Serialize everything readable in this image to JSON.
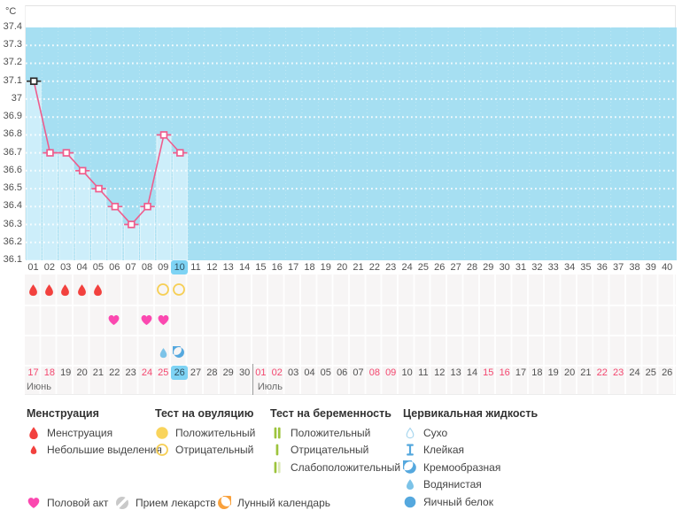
{
  "unit": "°C",
  "colors": {
    "chart_bg": "#a6dff2",
    "bar": "#cdeefa",
    "line": "#ef5d8d",
    "marker_first": "#2a2a2a",
    "highlight": "#7ed3f4",
    "menses_red": "#f2413e",
    "ovulation_yellow": "#f6cf55",
    "ovulation_fill": "#f9d45c",
    "heart_pink": "#fb48b0",
    "preg_green": "#9dc43d",
    "preg_green_pale": "#dce8b8",
    "cervical_blue": "#55a8de",
    "cervical_light": "#a9d7ef",
    "watery_blue": "#7cc3e8",
    "weekend_red": "#f4476f",
    "moon_orange": "#f9a13c",
    "pill_gray": "#c9c9c9"
  },
  "chart_data": {
    "type": "line",
    "ylabel": "°C",
    "ylim": [
      36.1,
      37.4
    ],
    "y_ticks": [
      "37.4",
      "37.3",
      "37.2",
      "37.1",
      "37",
      "36.9",
      "36.8",
      "36.7",
      "36.6",
      "36.5",
      "36.4",
      "36.3",
      "36.2",
      "36.1"
    ],
    "x_days": [
      "01",
      "02",
      "03",
      "04",
      "05",
      "06",
      "07",
      "08",
      "09",
      "10",
      "11",
      "12",
      "13",
      "14",
      "15",
      "16",
      "17",
      "18",
      "19",
      "20",
      "21",
      "22",
      "23",
      "24",
      "25",
      "26",
      "27",
      "28",
      "29",
      "30",
      "31",
      "32",
      "33",
      "34",
      "35",
      "36",
      "37",
      "38",
      "39",
      "40"
    ],
    "selected_day": 10,
    "grid": "dotted-white-horizontal",
    "series": [
      {
        "name": "temperature",
        "points": [
          {
            "day": 1,
            "value": 37.1
          },
          {
            "day": 2,
            "value": 36.7
          },
          {
            "day": 3,
            "value": 36.7
          },
          {
            "day": 4,
            "value": 36.6
          },
          {
            "day": 5,
            "value": 36.5
          },
          {
            "day": 6,
            "value": 36.4
          },
          {
            "day": 7,
            "value": 36.3
          },
          {
            "day": 8,
            "value": 36.4
          },
          {
            "day": 9,
            "value": 36.8
          },
          {
            "day": 10,
            "value": 36.7
          }
        ]
      }
    ]
  },
  "event_rows": [
    {
      "name": "menstruation-and-ovulation-test",
      "items": [
        {
          "day": 1,
          "icon": "menses-drop"
        },
        {
          "day": 2,
          "icon": "menses-drop"
        },
        {
          "day": 3,
          "icon": "menses-drop"
        },
        {
          "day": 4,
          "icon": "menses-drop"
        },
        {
          "day": 5,
          "icon": "menses-drop"
        },
        {
          "day": 9,
          "icon": "ovulation-negative"
        },
        {
          "day": 10,
          "icon": "ovulation-negative"
        }
      ]
    },
    {
      "name": "intercourse",
      "items": [
        {
          "day": 6,
          "icon": "heart"
        },
        {
          "day": 8,
          "icon": "heart"
        },
        {
          "day": 9,
          "icon": "heart"
        }
      ]
    },
    {
      "name": "cervical-fluid",
      "items": [
        {
          "day": 9,
          "icon": "cervical-watery"
        },
        {
          "day": 10,
          "icon": "cervical-creamy"
        }
      ]
    }
  ],
  "calendar": {
    "months": [
      {
        "name": "Июнь",
        "days": [
          "17",
          "18",
          "19",
          "20",
          "21",
          "22",
          "23",
          "24",
          "25",
          "26",
          "27",
          "28",
          "29",
          "30"
        ],
        "weekend_days": [
          "17",
          "18",
          "24",
          "25"
        ],
        "selected_day": "26"
      },
      {
        "name": "Июль",
        "days": [
          "01",
          "02",
          "03",
          "04",
          "05",
          "06",
          "07",
          "08",
          "09",
          "10",
          "11",
          "12",
          "13",
          "14",
          "15",
          "16",
          "17",
          "18",
          "19",
          "20",
          "21",
          "22",
          "23",
          "24",
          "25",
          "26"
        ],
        "weekend_days": [
          "01",
          "02",
          "08",
          "09",
          "15",
          "16",
          "22",
          "23"
        ],
        "selected_day": ""
      }
    ]
  },
  "legend": {
    "groups": [
      {
        "title": "Менструация",
        "items": [
          {
            "icon": "menses-drop",
            "label": "Менструация"
          },
          {
            "icon": "menses-drop-small",
            "label": "Небольшие выделения"
          }
        ]
      },
      {
        "title": "Тест на овуляцию",
        "items": [
          {
            "icon": "ovulation-positive",
            "label": "Положительный"
          },
          {
            "icon": "ovulation-negative",
            "label": "Отрицательный"
          }
        ]
      },
      {
        "title": "Тест на беременность",
        "items": [
          {
            "icon": "pregnancy-positive",
            "label": "Положительный"
          },
          {
            "icon": "pregnancy-negative",
            "label": "Отрицательный"
          },
          {
            "icon": "pregnancy-weak",
            "label": "Слабоположительный"
          }
        ]
      },
      {
        "title": "Цервикальная жидкость",
        "items": [
          {
            "icon": "cervical-dry",
            "label": "Сухо"
          },
          {
            "icon": "cervical-sticky",
            "label": "Клейкая"
          },
          {
            "icon": "cervical-creamy",
            "label": "Кремообразная"
          },
          {
            "icon": "cervical-watery",
            "label": "Водянистая"
          },
          {
            "icon": "cervical-eggwhite",
            "label": "Яичный белок"
          }
        ]
      }
    ],
    "footer_items": [
      {
        "icon": "heart",
        "label": "Половой акт"
      },
      {
        "icon": "pill",
        "label": "Прием лекарств"
      },
      {
        "icon": "moon",
        "label": "Лунный календарь"
      }
    ]
  }
}
